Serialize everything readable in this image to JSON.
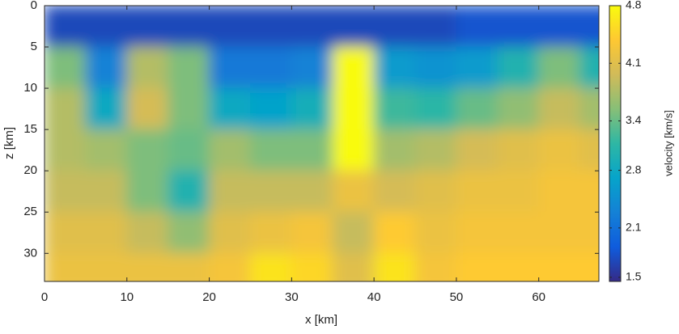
{
  "chart_data": {
    "type": "heatmap",
    "x_label": "x [km]",
    "y_label": "z [km]",
    "colorbar_label": "velocity [km/s]",
    "x": [
      2.5,
      7.5,
      12.5,
      17.5,
      22.5,
      27.5,
      32.5,
      37.5,
      42.5,
      47.5,
      52.5,
      57.5,
      62.5,
      67.5
    ],
    "y": [
      2.5,
      7.5,
      12.5,
      17.5,
      22.5,
      27.5,
      32.5
    ],
    "z": [
      [
        1.7,
        1.7,
        1.7,
        1.7,
        1.7,
        1.7,
        1.7,
        1.7,
        1.7,
        1.7,
        1.8,
        1.8,
        1.8,
        1.8
      ],
      [
        3.5,
        2.3,
        3.8,
        3.5,
        2.2,
        2.2,
        2.3,
        4.8,
        2.6,
        2.5,
        2.6,
        3.0,
        3.5,
        3.0
      ],
      [
        3.8,
        2.8,
        4.0,
        3.5,
        2.8,
        2.7,
        2.9,
        4.8,
        3.2,
        3.1,
        3.4,
        3.6,
        3.9,
        3.7
      ],
      [
        3.8,
        3.7,
        3.5,
        3.4,
        3.7,
        3.5,
        3.5,
        4.8,
        3.7,
        3.8,
        4.0,
        4.1,
        4.2,
        4.1
      ],
      [
        3.9,
        3.9,
        3.5,
        3.0,
        3.9,
        3.9,
        3.9,
        4.2,
        4.0,
        4.1,
        4.2,
        4.2,
        4.3,
        4.3
      ],
      [
        4.1,
        4.1,
        3.9,
        3.6,
        4.1,
        4.2,
        4.3,
        3.9,
        4.4,
        4.2,
        4.3,
        4.3,
        4.3,
        4.3
      ],
      [
        4.2,
        4.2,
        4.2,
        4.2,
        4.3,
        4.6,
        4.5,
        4.1,
        4.6,
        4.3,
        4.4,
        4.4,
        4.4,
        4.4
      ]
    ],
    "cell_size": 5,
    "xlim": [
      0,
      67.3
    ],
    "xticks": [
      0,
      10,
      20,
      30,
      40,
      50,
      60
    ],
    "ylim": [
      0,
      33.4
    ],
    "yticks": [
      0,
      5,
      10,
      15,
      20,
      25,
      30
    ],
    "y_reversed": true,
    "clim": [
      1.45,
      4.8
    ],
    "cticks": [
      1.5,
      2.1,
      2.8,
      3.4,
      4.1,
      4.8
    ],
    "colormap": [
      "#352a87",
      "#0f5cdd",
      "#1481d6",
      "#06a4ca",
      "#2eb7a4",
      "#87bf77",
      "#d1bb59",
      "#fec832",
      "#f9fb0e"
    ]
  }
}
